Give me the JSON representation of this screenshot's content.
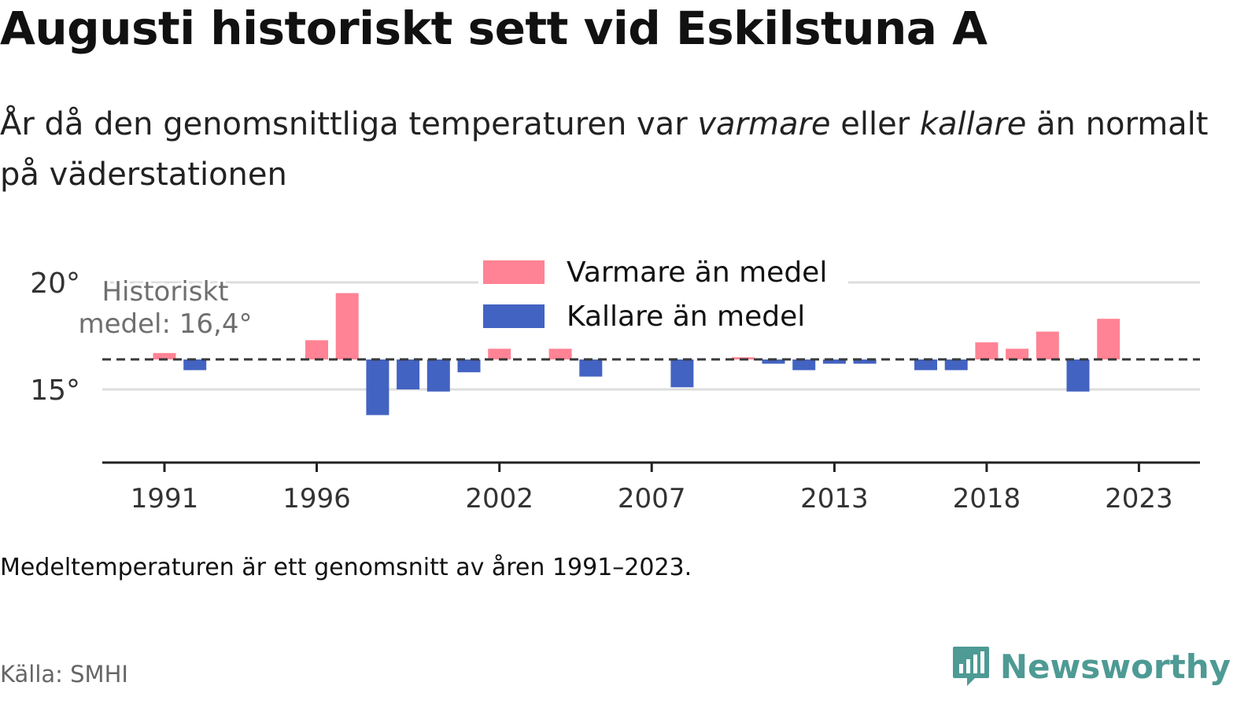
{
  "title": "Augusti historiskt sett vid Eskilstuna A",
  "subtitle": {
    "part1": "År då den genomsnittliga temperaturen var ",
    "warm_word": "varmare",
    "part2": " eller ",
    "cold_word": "kallare",
    "part3": " än normalt på väderstationen"
  },
  "note": "Medeltemperaturen är ett genomsnitt av åren 1991–2023.",
  "source": "Källa: SMHI",
  "brand": {
    "name": "Newsworthy",
    "icon": "newsworthy-logo-icon",
    "color": "#4e9a94"
  },
  "colors": {
    "warm": "#ff8394",
    "cold": "#4363c2",
    "baseline": "#3a3a3a",
    "grid": "#dddddd",
    "axis": "#222222"
  },
  "chart_data": {
    "type": "bar",
    "x": [
      1991,
      1992,
      1993,
      1994,
      1995,
      1996,
      1997,
      1998,
      1999,
      2000,
      2001,
      2002,
      2003,
      2004,
      2005,
      2006,
      2007,
      2008,
      2009,
      2010,
      2011,
      2012,
      2013,
      2014,
      2015,
      2016,
      2017,
      2018,
      2019,
      2020,
      2021,
      2022,
      2023
    ],
    "values": [
      16.7,
      15.9,
      null,
      null,
      null,
      17.3,
      19.5,
      13.8,
      15.0,
      14.9,
      15.8,
      16.9,
      null,
      16.9,
      15.6,
      null,
      null,
      15.1,
      null,
      16.5,
      16.2,
      15.9,
      16.2,
      16.2,
      null,
      15.9,
      15.9,
      17.2,
      16.9,
      17.7,
      14.9,
      18.3,
      null
    ],
    "baseline": 16.4,
    "baseline_label": "Historiskt medel: 16,4°",
    "baseline_label_lines": [
      "Historiskt",
      "medel: 16,4°"
    ],
    "yticks": [
      {
        "value": 15,
        "label": "15°"
      },
      {
        "value": 20,
        "label": "20°"
      }
    ],
    "xticks": [
      1991,
      1996,
      2002,
      2007,
      2013,
      2018,
      2023
    ],
    "ylim": [
      11.5,
      20.2
    ],
    "legend": {
      "warm": "Varmare än medel",
      "cold": "Kallare än medel",
      "position": "top-center"
    },
    "grid": true
  }
}
